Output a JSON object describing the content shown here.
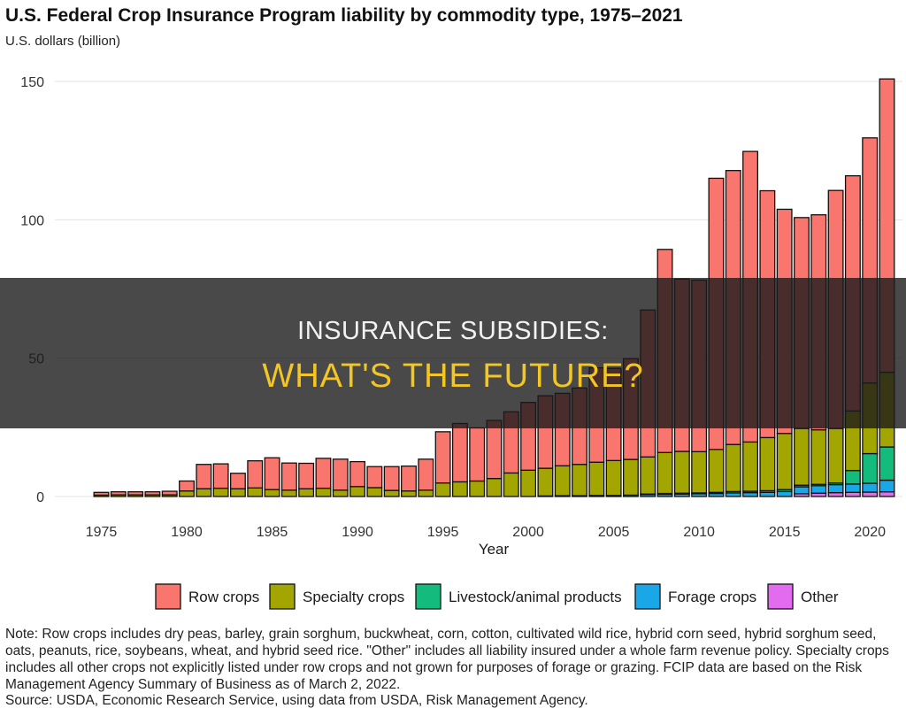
{
  "chart_data": {
    "type": "bar",
    "stacked": true,
    "title": "U.S. Federal Crop Insurance Program liability by commodity type, 1975–2021",
    "subtitle": "U.S. dollars (billion)",
    "xlabel": "Year",
    "ylabel": "",
    "ylim": [
      0,
      152
    ],
    "yticks": [
      0,
      50,
      100,
      150
    ],
    "xticks": [
      1975,
      1980,
      1985,
      1990,
      1995,
      2000,
      2005,
      2010,
      2015,
      2020
    ],
    "grid": true,
    "legend_position": "bottom",
    "x": [
      1975,
      1976,
      1977,
      1978,
      1979,
      1980,
      1981,
      1982,
      1983,
      1984,
      1985,
      1986,
      1987,
      1988,
      1989,
      1990,
      1991,
      1992,
      1993,
      1994,
      1995,
      1996,
      1997,
      1998,
      1999,
      2000,
      2001,
      2002,
      2003,
      2004,
      2005,
      2006,
      2007,
      2008,
      2009,
      2010,
      2011,
      2012,
      2013,
      2014,
      2015,
      2016,
      2017,
      2018,
      2019,
      2020,
      2021
    ],
    "series": [
      {
        "name": "Other",
        "color": "#e36bef",
        "values": [
          0,
          0,
          0,
          0,
          0,
          0,
          0,
          0,
          0,
          0,
          0,
          0,
          0,
          0,
          0,
          0,
          0,
          0,
          0,
          0,
          0,
          0,
          0,
          0,
          0,
          0,
          0,
          0,
          0,
          0,
          0,
          0,
          0,
          0,
          0,
          0,
          0,
          0,
          0,
          0,
          0,
          1.0,
          1.2,
          1.4,
          1.5,
          1.6,
          1.7
        ]
      },
      {
        "name": "Forage crops",
        "color": "#1aa7e8",
        "values": [
          0,
          0,
          0,
          0,
          0,
          0,
          0,
          0,
          0,
          0,
          0,
          0,
          0,
          0,
          0,
          0,
          0,
          0,
          0,
          0,
          0,
          0,
          0,
          0,
          0,
          0,
          0.2,
          0.3,
          0.3,
          0.4,
          0.4,
          0.5,
          0.7,
          0.8,
          0.9,
          1.0,
          1.1,
          1.3,
          1.4,
          1.5,
          1.8,
          2.5,
          2.7,
          2.9,
          3.0,
          3.2,
          4.2
        ]
      },
      {
        "name": "Livestock/animal products",
        "color": "#13bb7c",
        "values": [
          0,
          0,
          0,
          0,
          0,
          0,
          0,
          0,
          0,
          0,
          0,
          0,
          0,
          0,
          0,
          0,
          0,
          0,
          0,
          0,
          0,
          0,
          0,
          0,
          0,
          0,
          0,
          0,
          0,
          0,
          0,
          0,
          0.2,
          0.3,
          0.3,
          0.3,
          0.4,
          0.5,
          0.5,
          0.6,
          0.7,
          0.6,
          0.5,
          0.6,
          4.9,
          10.7,
          12.0
        ]
      },
      {
        "name": "Specialty crops",
        "color": "#a3a500",
        "values": [
          0.5,
          0.6,
          0.6,
          0.6,
          0.6,
          2.0,
          2.8,
          3.0,
          2.8,
          3.1,
          2.5,
          2.3,
          2.8,
          3.0,
          2.3,
          3.6,
          3.2,
          2.2,
          2.0,
          2.3,
          4.9,
          5.3,
          5.6,
          6.5,
          8.5,
          9.5,
          10.0,
          10.8,
          11.3,
          12.0,
          12.6,
          12.9,
          13.4,
          14.8,
          15.1,
          14.9,
          15.5,
          17.0,
          17.8,
          19.2,
          20.3,
          20.5,
          19.7,
          19.7,
          21.5,
          25.5,
          27.0
        ]
      },
      {
        "name": "Row crops",
        "color": "#f8766d",
        "values": [
          1.0,
          1.1,
          1.1,
          1.1,
          1.3,
          3.6,
          8.8,
          8.8,
          5.6,
          9.8,
          11.5,
          9.8,
          9.2,
          10.8,
          11.2,
          9.0,
          7.6,
          8.6,
          9.0,
          11.2,
          18.5,
          21.1,
          19.2,
          21.0,
          22.1,
          24.5,
          26.2,
          26.2,
          27.6,
          34.1,
          33.3,
          36.4,
          53.1,
          73.4,
          62.3,
          62.0,
          98.0,
          99.0,
          105.0,
          89.2,
          81.0,
          76.2,
          77.7,
          86.0,
          85.0,
          88.6,
          106.0
        ]
      }
    ]
  },
  "notes": {
    "note": "Note: Row crops includes dry peas, barley, grain sorghum, buckwheat, corn, cotton, cultivated wild rice, hybrid corn seed, hybrid sorghum seed, oats, peanuts, rice, soybeans, wheat, and hybrid seed rice. \"Other\" includes all liability insured under a whole farm revenue policy. Specialty crops includes all other crops not explicitly listed under row crops and not grown for purposes of forage or grazing. FCIP data are based on the Risk Management Agency Summary of Business as of March 2, 2022.",
    "source": "Source: USDA, Economic Research Service, using data from USDA, Risk Management Agency."
  },
  "overlay": {
    "line1": "INSURANCE SUBSIDIES:",
    "line2": "WHAT'S THE FUTURE?"
  },
  "legend_order": [
    "Row crops",
    "Specialty crops",
    "Livestock/animal products",
    "Forage crops",
    "Other"
  ]
}
